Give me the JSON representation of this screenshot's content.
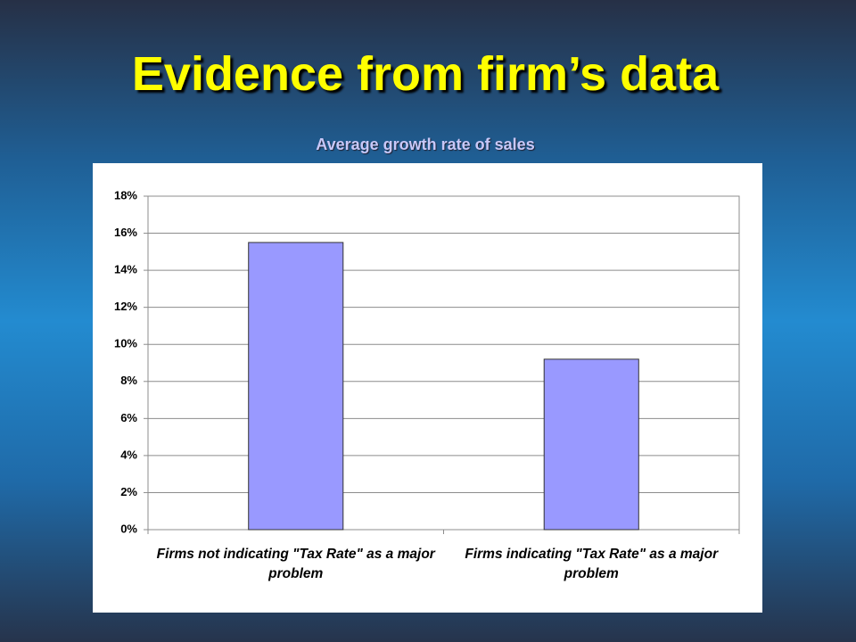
{
  "chart_data": {
    "type": "bar",
    "title": "Evidence from firm’s data",
    "subtitle": "Average growth rate of sales",
    "categories": [
      "Firms not indicating \"Tax Rate\" as a major problem",
      "Firms indicating \"Tax Rate\" as a major problem"
    ],
    "values": [
      15.5,
      9.2
    ],
    "color": "#9999ff",
    "ylim": [
      0,
      18
    ],
    "yticks": [
      {
        "value": 0,
        "label": "0%"
      },
      {
        "value": 2,
        "label": "2%"
      },
      {
        "value": 4,
        "label": "4%"
      },
      {
        "value": 6,
        "label": "6%"
      },
      {
        "value": 8,
        "label": "8%"
      },
      {
        "value": 10,
        "label": "10%"
      },
      {
        "value": 12,
        "label": "12%"
      },
      {
        "value": 14,
        "label": "14%"
      },
      {
        "value": 16,
        "label": "16%"
      },
      {
        "value": 18,
        "label": "18%"
      }
    ],
    "grid": true
  }
}
